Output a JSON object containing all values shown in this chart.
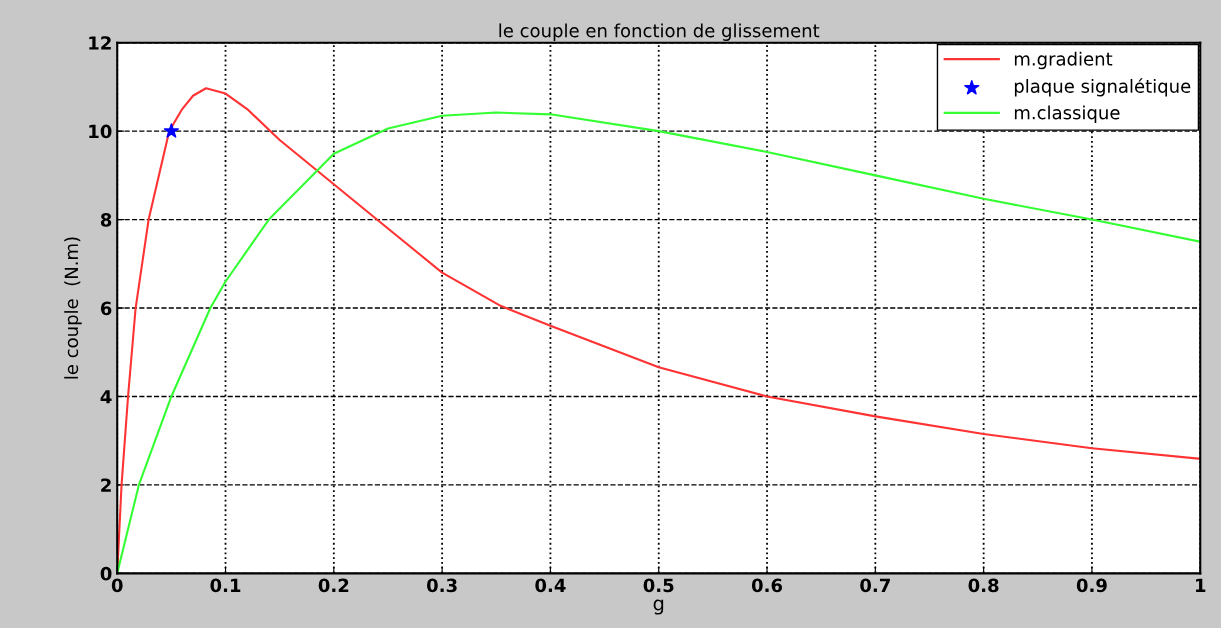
{
  "chart_data": {
    "type": "line",
    "title": "le couple en fonction de glissement",
    "xlabel": "g",
    "ylabel": "le couple  (N.m)",
    "xlim": [
      0,
      1
    ],
    "ylim": [
      0,
      12
    ],
    "xticks": [
      0,
      0.1,
      0.2,
      0.3,
      0.4,
      0.5,
      0.6,
      0.7,
      0.8,
      0.9,
      1
    ],
    "yticks": [
      0,
      2,
      4,
      6,
      8,
      10,
      12
    ],
    "grid": true,
    "legend": "top right",
    "series": [
      {
        "name": "m.gradient",
        "color": "#ff3333",
        "marker": "none",
        "x": [
          0,
          0.004,
          0.01,
          0.017,
          0.029,
          0.048,
          0.06,
          0.07,
          0.082,
          0.1,
          0.12,
          0.15,
          0.2,
          0.25,
          0.3,
          0.354,
          0.4,
          0.5,
          0.6,
          0.7,
          0.8,
          0.9,
          1.0
        ],
        "values": [
          0,
          2,
          4,
          6,
          8,
          10,
          10.5,
          10.8,
          10.97,
          10.85,
          10.5,
          9.8,
          8.8,
          7.8,
          6.8,
          6.05,
          5.6,
          4.66,
          4.0,
          3.55,
          3.15,
          2.83,
          2.59
        ]
      },
      {
        "name": "plaque signalétique",
        "color": "#0000ff",
        "type": "scatter",
        "marker": "star",
        "x": [
          0.05
        ],
        "values": [
          10
        ]
      },
      {
        "name": "m.classique",
        "color": "#33ff33",
        "marker": "none",
        "x": [
          0,
          0.02,
          0.05,
          0.086,
          0.1,
          0.14,
          0.2,
          0.25,
          0.3,
          0.35,
          0.4,
          0.5,
          0.6,
          0.7,
          0.8,
          0.9,
          1.0
        ],
        "values": [
          0,
          2,
          4,
          6,
          6.6,
          8,
          9.49,
          10.06,
          10.35,
          10.42,
          10.38,
          10.0,
          9.53,
          9.0,
          8.47,
          8.0,
          7.5
        ]
      }
    ]
  }
}
